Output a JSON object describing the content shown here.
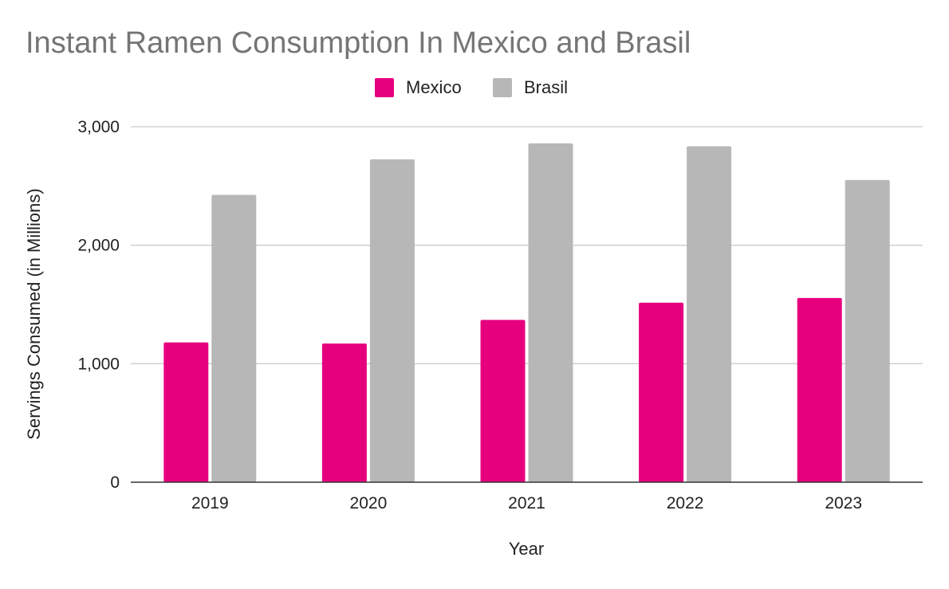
{
  "chart_data": {
    "type": "bar",
    "title": "Instant Ramen Consumption In Mexico and Brasil",
    "xlabel": "Year",
    "ylabel": "Servings Consumed (in Millions)",
    "categories": [
      "2019",
      "2020",
      "2021",
      "2022",
      "2023"
    ],
    "series": [
      {
        "name": "Mexico",
        "color": "#e6007e",
        "values": [
          1180,
          1170,
          1370,
          1515,
          1555
        ]
      },
      {
        "name": "Brasil",
        "color": "#b7b7b7",
        "values": [
          2425,
          2725,
          2860,
          2835,
          2550
        ]
      }
    ],
    "ylim": [
      0,
      3000
    ],
    "yticks": [
      0,
      1000,
      2000,
      3000
    ],
    "ytick_labels": [
      "0",
      "1,000",
      "2,000",
      "3,000"
    ],
    "grid": true,
    "legend_position": "top-center"
  }
}
